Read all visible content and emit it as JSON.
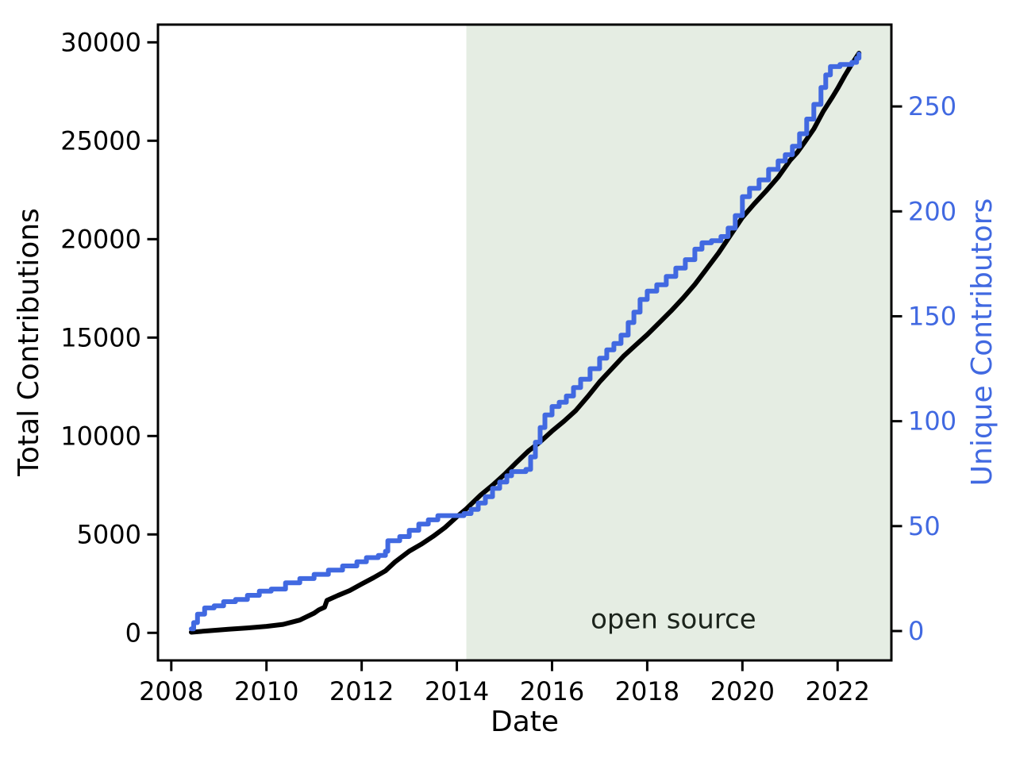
{
  "chart_data": {
    "type": "line",
    "title": "",
    "xlabel": "Date",
    "ylabel_left": "Total Contributions",
    "ylabel_right": "Unique Contributors",
    "grid": false,
    "legend": "none",
    "xlim": [
      2007.72,
      2023.13
    ],
    "ylim_left": [
      -1400,
      30900
    ],
    "ylim_right": [
      -14,
      289
    ],
    "xticks": [
      2008,
      2010,
      2012,
      2014,
      2016,
      2018,
      2020,
      2022
    ],
    "yticks_left": [
      0,
      5000,
      10000,
      15000,
      20000,
      25000,
      30000
    ],
    "yticks_right": [
      0,
      50,
      100,
      150,
      200,
      250
    ],
    "shade": {
      "start_x": 2014.2,
      "color": "#e5ede3",
      "meaning": "open source period"
    },
    "annotation": {
      "text": "open source",
      "x": 2018.55,
      "y_left": 720
    },
    "colors": {
      "total": "#000000",
      "unique": "#4169e1",
      "right_axis_text": "#4169e1",
      "shade": "#e5ede3",
      "annotation_text": "#1c241c"
    },
    "series": [
      {
        "id": "total-contributions",
        "name": "Total Contributions",
        "axis": "left",
        "style": "line",
        "color": "#000000",
        "points": [
          [
            2008.42,
            30
          ],
          [
            2008.8,
            110
          ],
          [
            2009.2,
            180
          ],
          [
            2009.6,
            250
          ],
          [
            2010.0,
            330
          ],
          [
            2010.35,
            430
          ],
          [
            2010.7,
            650
          ],
          [
            2011.0,
            1000
          ],
          [
            2011.1,
            1170
          ],
          [
            2011.22,
            1300
          ],
          [
            2011.27,
            1650
          ],
          [
            2011.5,
            1900
          ],
          [
            2011.75,
            2150
          ],
          [
            2012.0,
            2480
          ],
          [
            2012.25,
            2800
          ],
          [
            2012.5,
            3150
          ],
          [
            2012.7,
            3600
          ],
          [
            2013.0,
            4150
          ],
          [
            2013.25,
            4500
          ],
          [
            2013.5,
            4900
          ],
          [
            2013.75,
            5350
          ],
          [
            2014.0,
            5900
          ],
          [
            2014.2,
            6300
          ],
          [
            2014.5,
            7000
          ],
          [
            2014.75,
            7500
          ],
          [
            2015.0,
            8050
          ],
          [
            2015.25,
            8650
          ],
          [
            2015.5,
            9230
          ],
          [
            2015.75,
            9700
          ],
          [
            2016.0,
            10250
          ],
          [
            2016.25,
            10750
          ],
          [
            2016.5,
            11300
          ],
          [
            2016.75,
            12000
          ],
          [
            2017.0,
            12750
          ],
          [
            2017.25,
            13400
          ],
          [
            2017.5,
            14050
          ],
          [
            2017.75,
            14600
          ],
          [
            2018.0,
            15150
          ],
          [
            2018.25,
            15750
          ],
          [
            2018.5,
            16350
          ],
          [
            2018.75,
            17000
          ],
          [
            2019.0,
            17700
          ],
          [
            2019.25,
            18500
          ],
          [
            2019.5,
            19300
          ],
          [
            2019.75,
            20200
          ],
          [
            2020.0,
            21100
          ],
          [
            2020.25,
            21800
          ],
          [
            2020.5,
            22450
          ],
          [
            2020.75,
            23150
          ],
          [
            2021.0,
            24000
          ],
          [
            2021.15,
            24400
          ],
          [
            2021.3,
            24900
          ],
          [
            2021.5,
            25600
          ],
          [
            2021.7,
            26500
          ],
          [
            2021.9,
            27250
          ],
          [
            2022.0,
            27650
          ],
          [
            2022.15,
            28300
          ],
          [
            2022.3,
            28900
          ],
          [
            2022.45,
            29450
          ]
        ]
      },
      {
        "id": "unique-contributors",
        "name": "Unique Contributors",
        "axis": "right",
        "style": "step",
        "color": "#4169e1",
        "points": [
          [
            2008.42,
            1
          ],
          [
            2008.47,
            4
          ],
          [
            2008.55,
            8
          ],
          [
            2008.7,
            11
          ],
          [
            2008.9,
            12
          ],
          [
            2009.1,
            14
          ],
          [
            2009.35,
            15
          ],
          [
            2009.6,
            17
          ],
          [
            2009.85,
            19
          ],
          [
            2010.1,
            20
          ],
          [
            2010.4,
            23
          ],
          [
            2010.7,
            25
          ],
          [
            2011.0,
            27
          ],
          [
            2011.3,
            29
          ],
          [
            2011.6,
            31
          ],
          [
            2011.9,
            33
          ],
          [
            2012.1,
            35
          ],
          [
            2012.35,
            36
          ],
          [
            2012.5,
            38
          ],
          [
            2012.55,
            43
          ],
          [
            2012.8,
            45
          ],
          [
            2013.0,
            48
          ],
          [
            2013.2,
            51
          ],
          [
            2013.4,
            53
          ],
          [
            2013.6,
            55
          ],
          [
            2013.9,
            55
          ],
          [
            2014.15,
            56
          ],
          [
            2014.3,
            58
          ],
          [
            2014.45,
            61
          ],
          [
            2014.6,
            64
          ],
          [
            2014.75,
            68
          ],
          [
            2014.9,
            71
          ],
          [
            2015.05,
            74
          ],
          [
            2015.15,
            76
          ],
          [
            2015.45,
            77
          ],
          [
            2015.55,
            83
          ],
          [
            2015.65,
            90
          ],
          [
            2015.75,
            97
          ],
          [
            2015.85,
            103
          ],
          [
            2016.0,
            107
          ],
          [
            2016.15,
            109
          ],
          [
            2016.3,
            112
          ],
          [
            2016.45,
            116
          ],
          [
            2016.6,
            120
          ],
          [
            2016.8,
            125
          ],
          [
            2017.0,
            130
          ],
          [
            2017.15,
            134
          ],
          [
            2017.3,
            137
          ],
          [
            2017.45,
            141
          ],
          [
            2017.6,
            147
          ],
          [
            2017.72,
            152
          ],
          [
            2017.85,
            158
          ],
          [
            2018.0,
            162
          ],
          [
            2018.2,
            165
          ],
          [
            2018.4,
            169
          ],
          [
            2018.6,
            173
          ],
          [
            2018.8,
            177
          ],
          [
            2019.0,
            182
          ],
          [
            2019.15,
            185
          ],
          [
            2019.35,
            186
          ],
          [
            2019.55,
            188
          ],
          [
            2019.7,
            192
          ],
          [
            2019.85,
            198
          ],
          [
            2020.0,
            207
          ],
          [
            2020.15,
            211
          ],
          [
            2020.35,
            215
          ],
          [
            2020.55,
            220
          ],
          [
            2020.75,
            224
          ],
          [
            2020.9,
            227
          ],
          [
            2021.05,
            231
          ],
          [
            2021.2,
            237
          ],
          [
            2021.35,
            244
          ],
          [
            2021.5,
            251
          ],
          [
            2021.65,
            259
          ],
          [
            2021.75,
            265
          ],
          [
            2021.85,
            269
          ],
          [
            2022.05,
            270
          ],
          [
            2022.3,
            271
          ],
          [
            2022.4,
            273
          ],
          [
            2022.45,
            275
          ]
        ]
      }
    ]
  }
}
